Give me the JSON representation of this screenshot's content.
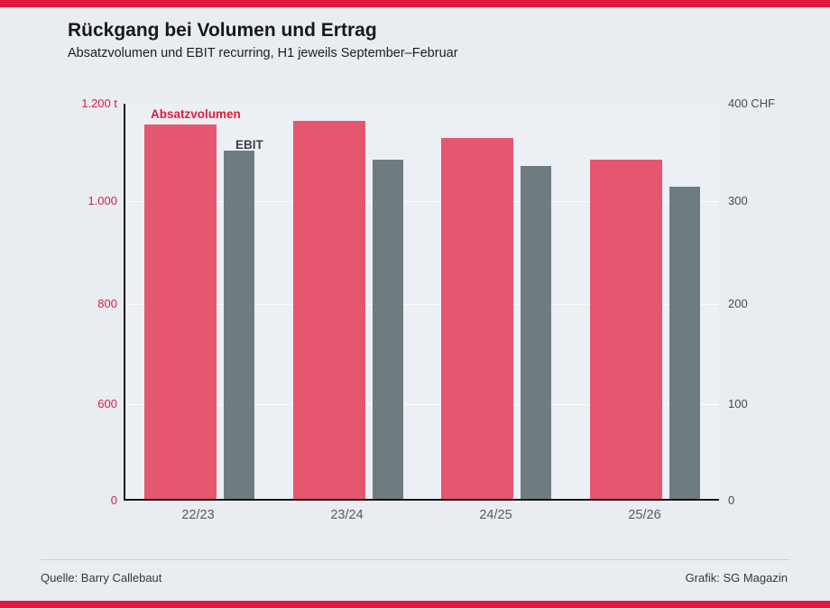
{
  "colors": {
    "accent_red": "#e2173e",
    "bar_red": "#e4576e",
    "bar_gray": "#6e7b80",
    "background": "#e9edf2",
    "axis_line": "#141414"
  },
  "header": {
    "title": "Rückgang bei Volumen und Ertrag",
    "subtitle": "Absatzvolumen und EBIT recurring, H1 jeweils September–Februar"
  },
  "chart_data": {
    "type": "bar",
    "title": "Rückgang bei Volumen und Ertrag",
    "subtitle": "Absatzvolumen und EBIT recurring, H1 jeweils September–Februar",
    "categories": [
      "22/23",
      "23/24",
      "24/25",
      "25/26"
    ],
    "series": [
      {
        "name": "Absatzvolumen",
        "axis": "left",
        "unit": "t",
        "color": "#e4576e",
        "values": [
          1154,
          1162,
          1126,
          1081
        ]
      },
      {
        "name": "EBIT",
        "axis": "right",
        "unit": "CHF",
        "color": "#6e7b80",
        "values": [
          350,
          341,
          334,
          313
        ]
      }
    ],
    "left_axis": {
      "unit": "t",
      "tick_labels": [
        "1.200 t",
        "1.000",
        "800",
        "600",
        "0"
      ],
      "tick_values": [
        1200,
        1000,
        800,
        600,
        0
      ],
      "range": [
        0,
        1200
      ],
      "truncated_below": 600
    },
    "right_axis": {
      "unit": "CHF",
      "tick_labels": [
        "400 CHF",
        "300",
        "200",
        "100",
        "0"
      ],
      "tick_values": [
        400,
        300,
        200,
        100,
        0
      ],
      "range": [
        0,
        400
      ]
    },
    "tick_positions": [
      0,
      0.2455,
      0.5045,
      0.757,
      1
    ],
    "grid": true,
    "legend_position": "in-plot"
  },
  "footer": {
    "source": "Quelle: Barry Callebaut",
    "credit": "Grafik: SG Magazin"
  }
}
